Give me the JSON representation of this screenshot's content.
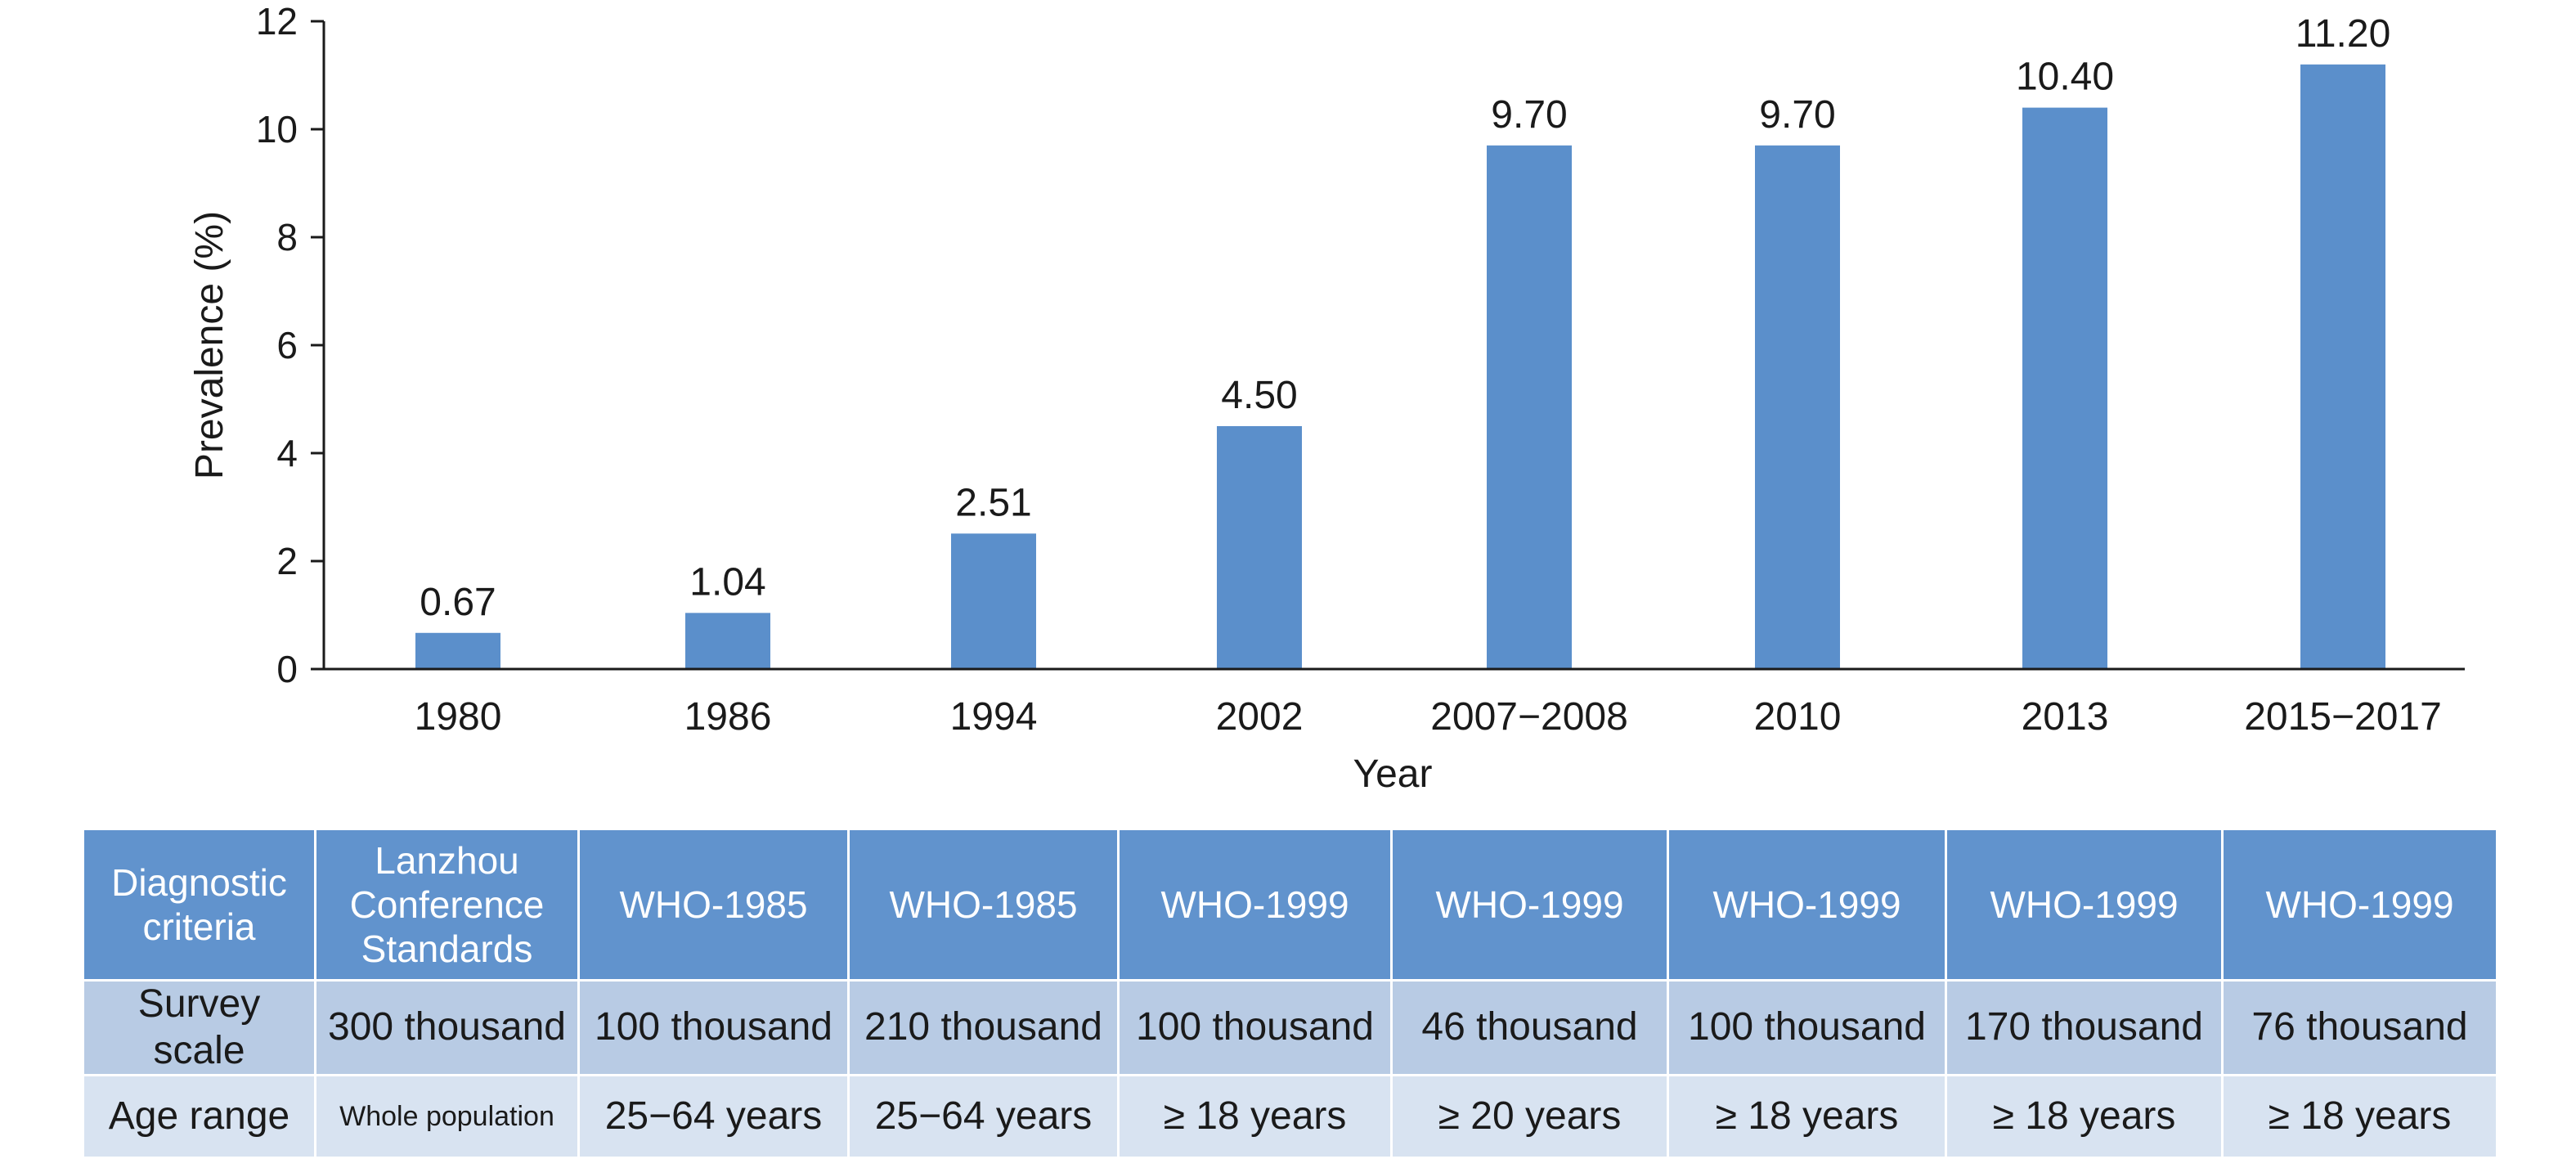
{
  "chart_data": {
    "type": "bar",
    "categories": [
      "1980",
      "1986",
      "1994",
      "2002",
      "2007−2008",
      "2010",
      "2013",
      "2015−2017"
    ],
    "values": [
      0.67,
      1.04,
      2.51,
      4.5,
      9.7,
      9.7,
      10.4,
      11.2
    ],
    "value_labels": [
      "0.67",
      "1.04",
      "2.51",
      "4.50",
      "9.70",
      "9.70",
      "10.40",
      "11.20"
    ],
    "xlabel": "Year",
    "ylabel": "Prevalence (%)",
    "ylim": [
      0,
      12
    ],
    "yticks": [
      "0",
      "2",
      "4",
      "6",
      "8",
      "10",
      "12"
    ],
    "bar_color": "#5b8fcb",
    "grid": false,
    "legend": false
  },
  "table": {
    "header_color": "#6193cd",
    "row1_color": "#b8cbe4",
    "row2_color": "#d8e3f1",
    "rows": [
      {
        "label": "Diagnostic criteria",
        "cells": [
          "Lanzhou Conference Standards",
          "WHO-1985",
          "WHO-1985",
          "WHO-1999",
          "WHO-1999",
          "WHO-1999",
          "WHO-1999",
          "WHO-1999"
        ]
      },
      {
        "label": "Survey scale",
        "cells": [
          "300 thousand",
          "100 thousand",
          "210 thousand",
          "100 thousand",
          "46 thousand",
          "100 thousand",
          "170 thousand",
          "76 thousand"
        ]
      },
      {
        "label": "Age range",
        "cells": [
          "Whole population",
          "25−64 years",
          "25−64 years",
          "≥ 18 years",
          "≥ 20 years",
          "≥ 18 years",
          "≥ 18 years",
          "≥ 18 years"
        ]
      }
    ]
  }
}
